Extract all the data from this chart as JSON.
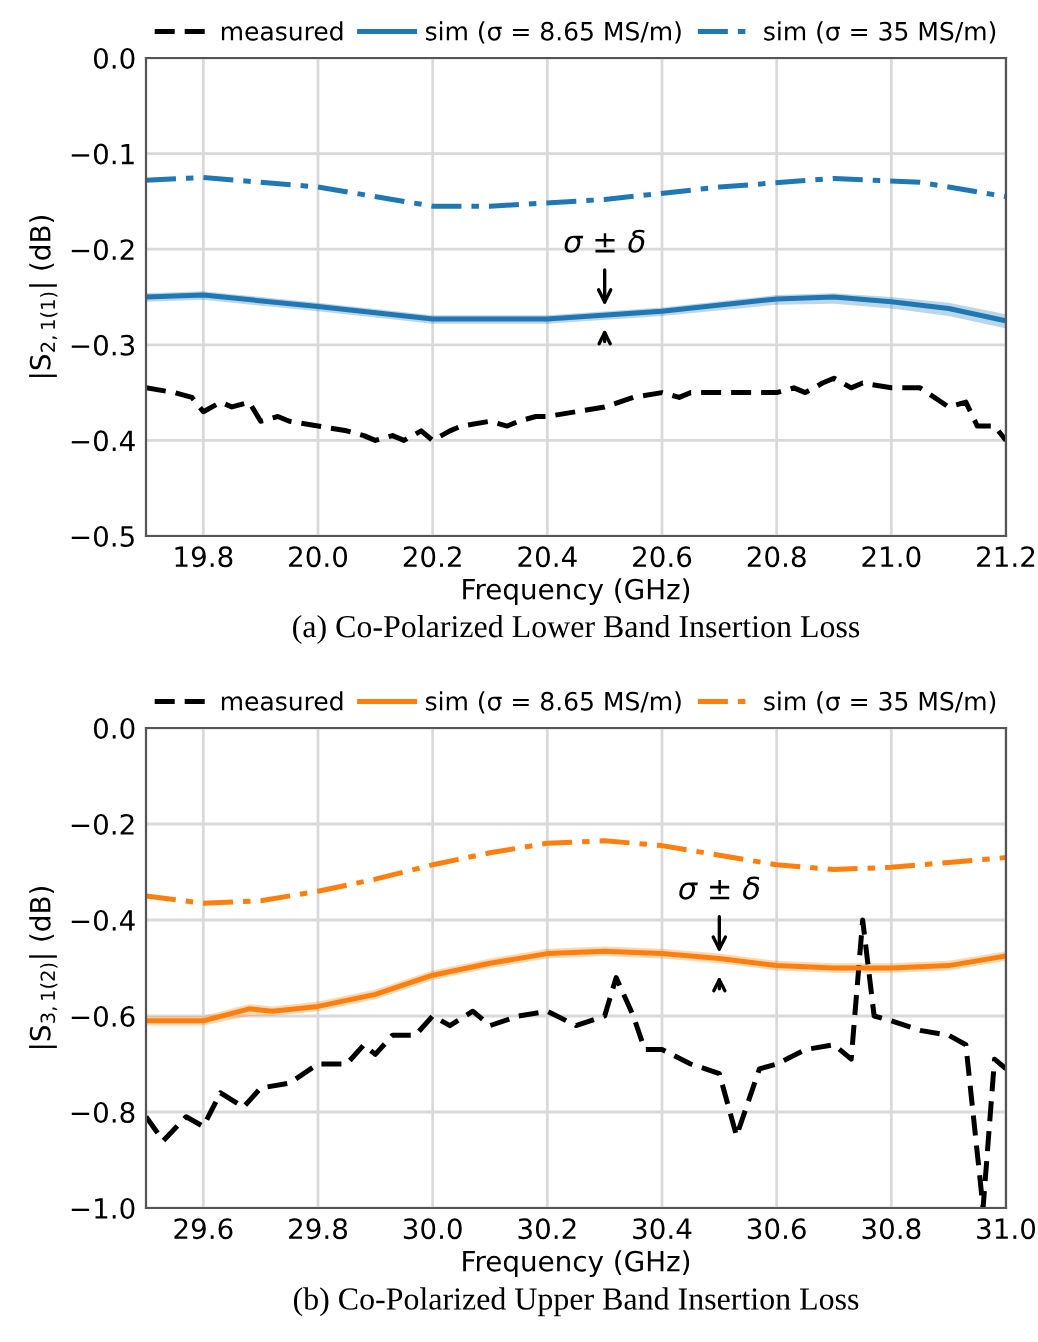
{
  "chart_data": [
    {
      "type": "line",
      "title": "(a) Co-Polarized Lower Band Insertion Loss",
      "xlabel": "Frequency (GHz)",
      "ylabel": "|S$_{2,1(1)}$| (dB)",
      "xlim": [
        19.7,
        21.2
      ],
      "xticks": [
        19.8,
        {
          "value": 20,
          "label": "20.0"
        },
        20.2,
        20.4,
        20.6,
        20.8,
        {
          "value": 21,
          "label": "21.0"
        },
        21.2
      ],
      "ylim": [
        -0.5,
        0.0
      ],
      "yticks": [
        {
          "value": -0.5,
          "label": "−0.5"
        },
        {
          "value": -0.4,
          "label": "−0.4"
        },
        {
          "value": -0.3,
          "label": "−0.3"
        },
        {
          "value": -0.2,
          "label": "−0.2"
        },
        {
          "value": -0.1,
          "label": "−0.1"
        },
        {
          "value": 0,
          "label": "0.0"
        }
      ],
      "grid": true,
      "legend": "top",
      "annotations": [
        {
          "text": "σ ± δ",
          "x": 20.5,
          "y": -0.265
        }
      ],
      "series": [
        {
          "name": "measured",
          "color": "#000000",
          "line_style": "dashed",
          "x": [
            19.7,
            19.75,
            19.78,
            19.8,
            19.83,
            19.85,
            19.88,
            19.9,
            19.93,
            19.95,
            20.0,
            20.05,
            20.08,
            20.1,
            20.13,
            20.15,
            20.18,
            20.2,
            20.23,
            20.25,
            20.3,
            20.33,
            20.35,
            20.38,
            20.4,
            20.45,
            20.5,
            20.55,
            20.6,
            20.63,
            20.65,
            20.7,
            20.75,
            20.8,
            20.83,
            20.85,
            20.88,
            20.9,
            20.93,
            20.95,
            21.0,
            21.05,
            21.1,
            21.13,
            21.15,
            21.18,
            21.2
          ],
          "values": [
            -0.345,
            -0.35,
            -0.355,
            -0.37,
            -0.36,
            -0.365,
            -0.36,
            -0.38,
            -0.375,
            -0.38,
            -0.385,
            -0.39,
            -0.395,
            -0.4,
            -0.395,
            -0.4,
            -0.39,
            -0.4,
            -0.39,
            -0.385,
            -0.38,
            -0.385,
            -0.38,
            -0.375,
            -0.375,
            -0.37,
            -0.365,
            -0.355,
            -0.35,
            -0.355,
            -0.35,
            -0.35,
            -0.35,
            -0.35,
            -0.345,
            -0.35,
            -0.34,
            -0.335,
            -0.345,
            -0.34,
            -0.345,
            -0.345,
            -0.365,
            -0.36,
            -0.385,
            -0.385,
            -0.4
          ]
        },
        {
          "name": "sim (σ = 8.65 MS/m)",
          "color": "#1f77b4",
          "line_style": "solid",
          "x": [
            19.7,
            19.8,
            20.0,
            20.2,
            20.4,
            20.6,
            20.8,
            20.9,
            21.0,
            21.1,
            21.2
          ],
          "values": [
            -0.25,
            -0.248,
            -0.26,
            -0.273,
            -0.273,
            -0.265,
            -0.252,
            -0.25,
            -0.255,
            -0.262,
            -0.275
          ],
          "lower": [
            -0.255,
            -0.253,
            -0.265,
            -0.278,
            -0.278,
            -0.27,
            -0.258,
            -0.257,
            -0.262,
            -0.27,
            -0.283
          ],
          "upper": [
            -0.246,
            -0.244,
            -0.256,
            -0.269,
            -0.269,
            -0.261,
            -0.248,
            -0.246,
            -0.25,
            -0.256,
            -0.268
          ]
        },
        {
          "name": "sim (σ = 35 MS/m)",
          "color": "#1f77b4",
          "line_style": "dashdot",
          "x": [
            19.7,
            19.8,
            20.0,
            20.2,
            20.3,
            20.5,
            20.7,
            20.9,
            21.05,
            21.2
          ],
          "values": [
            -0.128,
            -0.125,
            -0.135,
            -0.155,
            -0.155,
            -0.148,
            -0.135,
            -0.126,
            -0.13,
            -0.145
          ]
        }
      ]
    },
    {
      "type": "line",
      "title": "(b) Co-Polarized Upper Band Insertion Loss",
      "xlabel": "Frequency (GHz)",
      "ylabel": "|S$_{3,1(2)}$| (dB)",
      "xlim": [
        29.5,
        31.0
      ],
      "xticks": [
        29.6,
        29.8,
        {
          "value": 30,
          "label": "30.0"
        },
        30.2,
        30.4,
        30.6,
        30.8,
        {
          "value": 31,
          "label": "31.0"
        }
      ],
      "ylim": [
        -1.0,
        0.0
      ],
      "yticks": [
        {
          "value": -1,
          "label": "−1.0"
        },
        {
          "value": -0.8,
          "label": "−0.8"
        },
        {
          "value": -0.6,
          "label": "−0.6"
        },
        {
          "value": -0.4,
          "label": "−0.4"
        },
        {
          "value": -0.2,
          "label": "−0.2"
        },
        {
          "value": 0,
          "label": "0.0"
        }
      ],
      "grid": true,
      "legend": "top",
      "annotations": [
        {
          "text": "σ ± δ",
          "x": 30.5,
          "y": -0.48
        }
      ],
      "series": [
        {
          "name": "measured",
          "color": "#000000",
          "line_style": "dashed",
          "x": [
            29.5,
            29.53,
            29.57,
            29.6,
            29.63,
            29.67,
            29.7,
            29.75,
            29.8,
            29.85,
            29.88,
            29.9,
            29.93,
            29.97,
            30.0,
            30.03,
            30.07,
            30.1,
            30.15,
            30.2,
            30.25,
            30.3,
            30.32,
            30.35,
            30.37,
            30.4,
            30.45,
            30.5,
            30.53,
            30.57,
            30.6,
            30.65,
            30.7,
            30.73,
            30.75,
            30.77,
            30.8,
            30.85,
            30.9,
            30.93,
            30.96,
            30.98,
            31.0
          ],
          "values": [
            -0.81,
            -0.86,
            -0.81,
            -0.83,
            -0.76,
            -0.79,
            -0.75,
            -0.74,
            -0.7,
            -0.7,
            -0.66,
            -0.68,
            -0.64,
            -0.64,
            -0.6,
            -0.62,
            -0.59,
            -0.62,
            -0.6,
            -0.59,
            -0.62,
            -0.6,
            -0.52,
            -0.6,
            -0.67,
            -0.67,
            -0.7,
            -0.72,
            -0.85,
            -0.71,
            -0.7,
            -0.67,
            -0.66,
            -0.69,
            -0.4,
            -0.6,
            -0.61,
            -0.63,
            -0.64,
            -0.66,
            -1.0,
            -0.69,
            -0.71
          ]
        },
        {
          "name": "sim (σ = 8.65 MS/m)",
          "color": "#ff7f0e",
          "line_style": "solid",
          "x": [
            29.5,
            29.6,
            29.68,
            29.72,
            29.8,
            29.9,
            30.0,
            30.1,
            30.2,
            30.3,
            30.4,
            30.5,
            30.6,
            30.7,
            30.8,
            30.9,
            31.0
          ],
          "values": [
            -0.61,
            -0.61,
            -0.585,
            -0.59,
            -0.58,
            -0.555,
            -0.515,
            -0.49,
            -0.47,
            -0.465,
            -0.47,
            -0.48,
            -0.495,
            -0.5,
            -0.5,
            -0.495,
            -0.475
          ],
          "lower": [
            -0.62,
            -0.62,
            -0.6,
            -0.6,
            -0.59,
            -0.565,
            -0.525,
            -0.5,
            -0.48,
            -0.475,
            -0.48,
            -0.49,
            -0.505,
            -0.51,
            -0.51,
            -0.505,
            -0.485
          ],
          "upper": [
            -0.6,
            -0.6,
            -0.575,
            -0.58,
            -0.57,
            -0.545,
            -0.505,
            -0.48,
            -0.46,
            -0.455,
            -0.46,
            -0.47,
            -0.485,
            -0.49,
            -0.49,
            -0.485,
            -0.465
          ]
        },
        {
          "name": "sim (σ = 35 MS/m)",
          "color": "#ff7f0e",
          "line_style": "dashdot",
          "x": [
            29.5,
            29.6,
            29.7,
            29.8,
            29.9,
            30.0,
            30.1,
            30.2,
            30.3,
            30.4,
            30.5,
            30.6,
            30.7,
            30.8,
            30.9,
            31.0
          ],
          "values": [
            -0.35,
            -0.365,
            -0.36,
            -0.34,
            -0.315,
            -0.285,
            -0.26,
            -0.24,
            -0.235,
            -0.245,
            -0.265,
            -0.285,
            -0.295,
            -0.29,
            -0.28,
            -0.27
          ]
        }
      ]
    }
  ]
}
